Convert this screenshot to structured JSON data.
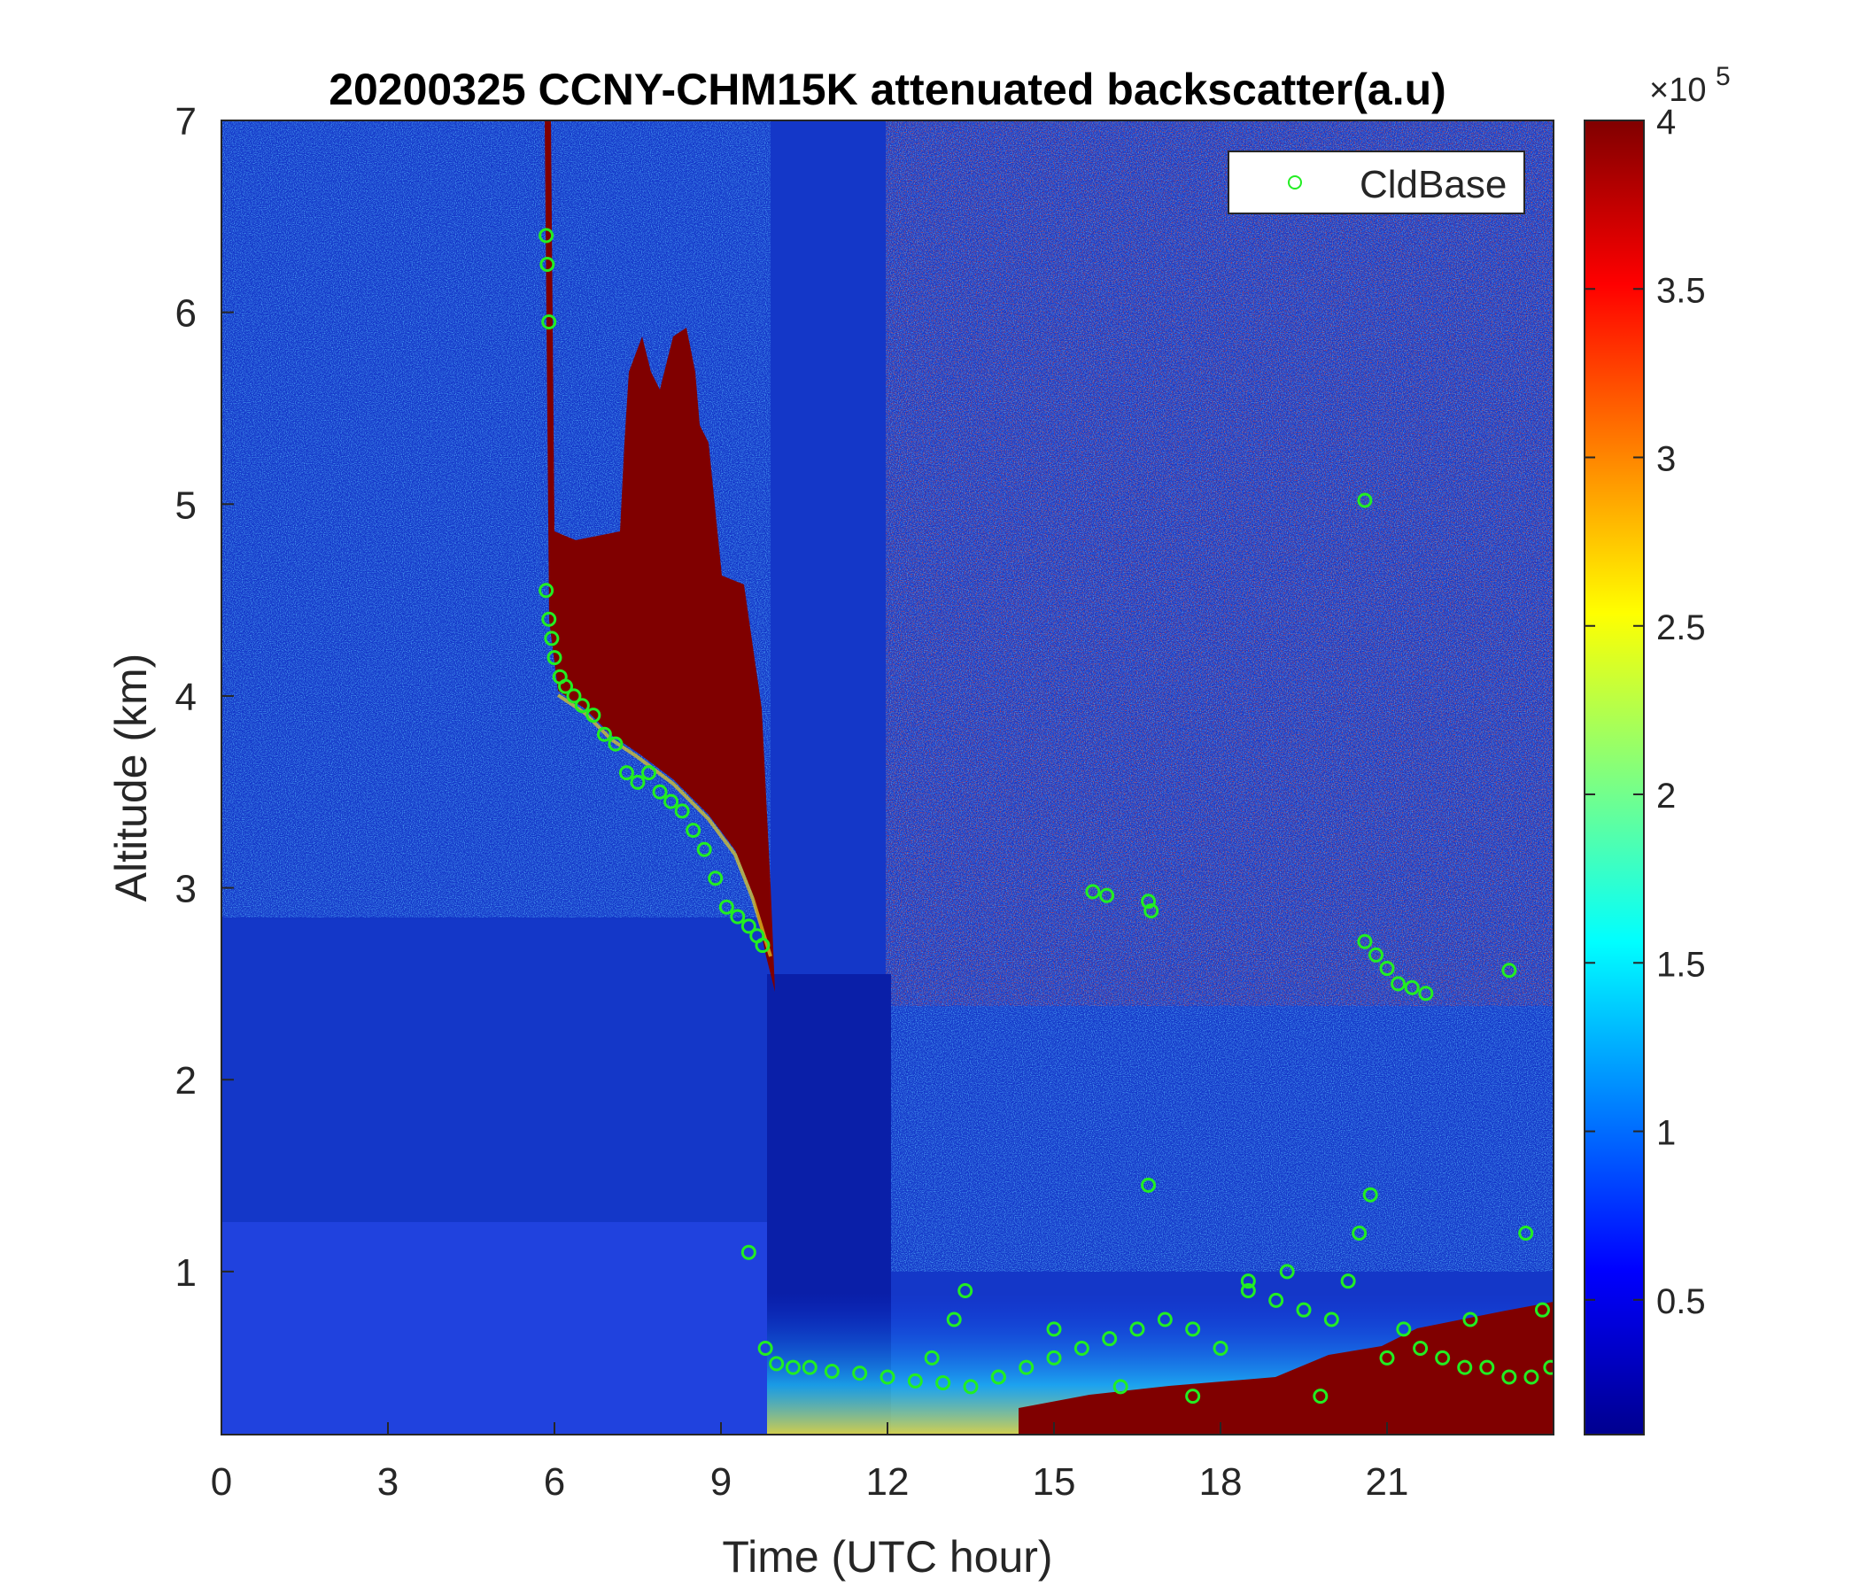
{
  "chart_data": {
    "type": "heatmap",
    "title": "20200325 CCNY-CHM15K attenuated backscatter(a.u)",
    "xlabel": "Time (UTC hour)",
    "ylabel": "Altitude (km)",
    "xlim": [
      0,
      24
    ],
    "ylim": [
      0.15,
      7
    ],
    "x_ticks": [
      0,
      3,
      6,
      9,
      12,
      15,
      18,
      21
    ],
    "x_tick_labels": [
      "0",
      "3",
      "6",
      "9",
      "12",
      "15",
      "18",
      "21"
    ],
    "y_ticks": [
      1,
      2,
      3,
      4,
      5,
      6,
      7
    ],
    "y_tick_labels": [
      "1",
      "2",
      "3",
      "4",
      "5",
      "6",
      "7"
    ],
    "colorbar": {
      "colormap": "jet",
      "clim": [
        0.1,
        4
      ],
      "ticks": [
        0.5,
        1,
        1.5,
        2,
        2.5,
        3,
        3.5,
        4
      ],
      "tick_labels": [
        "0.5",
        "1",
        "1.5",
        "2",
        "2.5",
        "3",
        "3.5",
        "4"
      ],
      "exponent_label": "×10",
      "exponent_power": "5"
    },
    "legend": {
      "entries": [
        "CldBase"
      ],
      "position": "top-right"
    },
    "marker_color": "#22ee22",
    "cloud_regions": [
      {
        "x_start": 5.8,
        "x_end": 9.8,
        "base_km": [
          4.6,
          4.1,
          3.8,
          3.3,
          2.8
        ],
        "top_km": [
          4.9,
          5.9,
          5.9,
          4.6,
          3.1
        ]
      },
      {
        "x_start": 10.0,
        "x_end": 24.0,
        "base_km": [
          0.5,
          0.45,
          0.4,
          0.5,
          0.6
        ],
        "top_km": [
          0.6,
          0.6,
          0.7,
          1.0,
          0.9
        ]
      }
    ],
    "series": [
      {
        "name": "CldBase",
        "x": [
          5.85,
          5.9,
          5.95,
          6.0,
          6.1,
          6.2,
          6.35,
          6.5,
          6.7,
          6.9,
          7.1,
          7.3,
          7.5,
          7.7,
          7.9,
          8.1,
          8.3,
          8.5,
          8.7,
          8.9,
          9.1,
          9.3,
          9.5,
          9.65,
          9.75,
          9.8,
          10.0,
          10.3,
          10.6,
          11.0,
          11.5,
          12.0,
          12.5,
          13.0,
          13.5,
          14.0,
          14.5,
          15.0,
          15.5,
          16.0,
          16.5,
          17.0,
          17.5,
          18.0,
          18.5,
          19.0,
          19.5,
          20.0,
          20.3,
          20.5,
          20.7,
          21.0,
          21.3,
          21.6,
          22.0,
          22.4,
          22.8,
          23.2,
          23.6,
          23.95,
          5.85,
          5.87,
          5.9,
          9.5,
          15.7,
          15.95,
          16.7,
          16.75,
          20.6,
          20.8,
          21.0,
          21.2,
          21.45,
          21.7,
          23.2,
          20.6,
          16.7,
          14.0,
          15.0,
          16.2,
          17.5,
          18.5,
          19.2,
          19.8,
          22.5,
          23.5,
          23.8,
          13.2,
          13.4,
          12.8
        ],
        "y": [
          4.55,
          4.4,
          4.3,
          4.2,
          4.1,
          4.05,
          4.0,
          3.95,
          3.9,
          3.8,
          3.75,
          3.6,
          3.55,
          3.6,
          3.5,
          3.45,
          3.4,
          3.3,
          3.2,
          3.05,
          2.9,
          2.85,
          2.8,
          2.75,
          2.7,
          0.6,
          0.52,
          0.5,
          0.5,
          0.48,
          0.47,
          0.45,
          0.43,
          0.42,
          0.4,
          0.45,
          0.5,
          0.55,
          0.6,
          0.65,
          0.7,
          0.75,
          0.7,
          0.6,
          0.9,
          0.85,
          0.8,
          0.75,
          0.95,
          1.2,
          1.4,
          0.55,
          0.7,
          0.6,
          0.55,
          0.5,
          0.5,
          0.45,
          0.45,
          0.5,
          6.4,
          6.25,
          5.95,
          1.1,
          2.98,
          2.96,
          2.93,
          2.88,
          2.72,
          2.65,
          2.58,
          2.5,
          2.48,
          2.45,
          2.57,
          5.02,
          1.45,
          0.45,
          0.7,
          0.4,
          0.35,
          0.95,
          1.0,
          0.35,
          0.75,
          1.2,
          0.8,
          0.75,
          0.9,
          0.55
        ]
      }
    ]
  }
}
